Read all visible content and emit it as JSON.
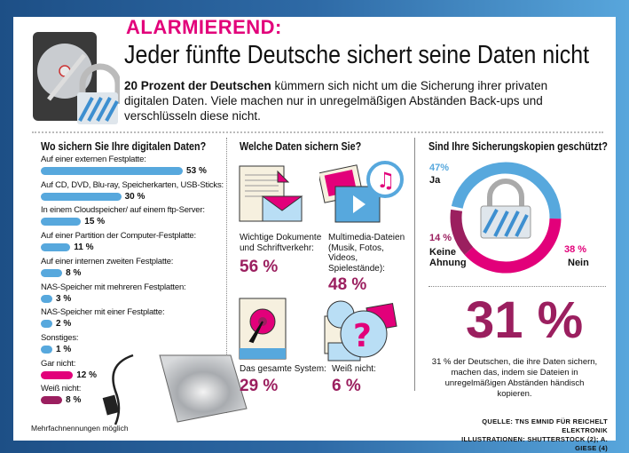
{
  "header": {
    "kicker": "ALARMIEREND:",
    "headline": "Jeder fünfte Deutsche sichert seine Daten nicht",
    "intro_bold": "20 Prozent der Deutschen",
    "intro_rest": " kümmern sich nicht um die Sicherung ihrer privaten digitalen Daten. Viele machen nur in unregelmäßigen Abständen Back-ups und verschlüsseln diese nicht."
  },
  "colors": {
    "blue": "#57a8dd",
    "pink": "#e2007a",
    "purple": "#9b1f5f"
  },
  "chart_data": [
    {
      "type": "bar",
      "title": "Wo sichern Sie Ihre digitalen Daten?",
      "categories": [
        "Auf einer externen Festplatte:",
        "Auf CD, DVD, Blu-ray, Speicherkarten, USB-Sticks:",
        "In einem Cloudspeicher/ auf einem ftp-Server:",
        "Auf einer Partition der Computer-Festplatte:",
        "Auf einer internen zweiten Festplatte:",
        "NAS-Speicher mit mehreren Festplatten:",
        "NAS-Speicher mit einer Festplatte:",
        "Sonstiges:",
        "Gar nicht:",
        "Weiß nicht:"
      ],
      "values": [
        53,
        30,
        15,
        11,
        8,
        3,
        2,
        1,
        12,
        8
      ],
      "value_labels": [
        "53 %",
        "30 %",
        "15 %",
        "11 %",
        "8 %",
        "3 %",
        "2 %",
        "1 %",
        "12 %",
        "8 %"
      ],
      "bar_colors": [
        "#57a8dd",
        "#57a8dd",
        "#57a8dd",
        "#57a8dd",
        "#57a8dd",
        "#57a8dd",
        "#57a8dd",
        "#57a8dd",
        "#e2007a",
        "#9b1f5f"
      ],
      "footnote": "Mehrfachnennungen möglich"
    },
    {
      "type": "table",
      "title": "Welche Daten sichern Sie?",
      "items": [
        {
          "label": "Wichtige Dokumente und Schriftverkehr:",
          "value": "56 %",
          "icon": "documents-envelope-icon"
        },
        {
          "label": "Multimedia-Dateien (Musik, Fotos, Videos, Spielestände):",
          "value": "48 %",
          "icon": "multimedia-icon"
        },
        {
          "label": "Das gesamte System:",
          "value": "29 %",
          "icon": "hard-disk-icon"
        },
        {
          "label": "Weiß nicht:",
          "value": "6 %",
          "icon": "question-icon"
        }
      ]
    },
    {
      "type": "pie",
      "title": "Sind Ihre Sicherungskopien geschützt?",
      "slices": [
        {
          "label": "Ja",
          "value": 47,
          "value_label": "47%",
          "color": "#57a8dd"
        },
        {
          "label": "Nein",
          "value": 38,
          "value_label": "38 %",
          "color": "#e2007a"
        },
        {
          "label": "Keine Ahnung",
          "value": 14,
          "value_label": "14 %",
          "color": "#9b1f5f"
        }
      ]
    }
  ],
  "highlight": {
    "value": "31 %",
    "text": "31 % der Deutschen, die ihre Daten sichern, machen das, indem sie Dateien in unregelmäßigen Abständen händisch kopieren."
  },
  "source": {
    "line1": "QUELLE: TNS EMNID FÜR REICHELT ELEKTRONIK",
    "line2": "ILLUSTRATIONEN: SHUTTERSTOCK (2); A. GIESE (4)"
  }
}
